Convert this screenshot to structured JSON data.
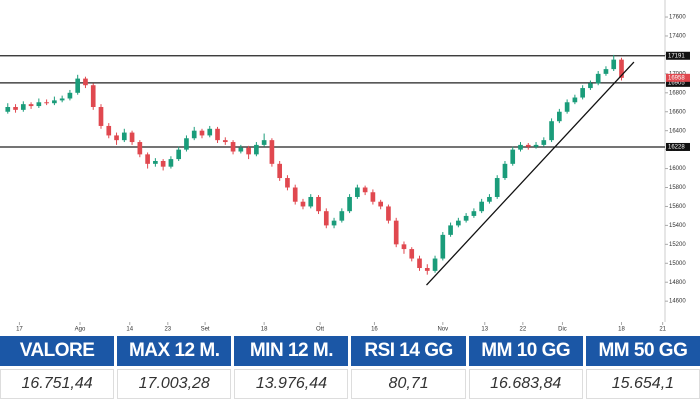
{
  "chart_data": {
    "type": "candlestick",
    "candles": [
      [
        16600,
        16690,
        16580,
        16650
      ],
      [
        16650,
        16680,
        16590,
        16620
      ],
      [
        16620,
        16710,
        16600,
        16680
      ],
      [
        16680,
        16700,
        16630,
        16660
      ],
      [
        16660,
        16740,
        16640,
        16700
      ],
      [
        16700,
        16730,
        16670,
        16690
      ],
      [
        16690,
        16760,
        16670,
        16720
      ],
      [
        16720,
        16770,
        16700,
        16740
      ],
      [
        16740,
        16830,
        16720,
        16800
      ],
      [
        16800,
        16990,
        16780,
        16950
      ],
      [
        16950,
        16970,
        16850,
        16880
      ],
      [
        16880,
        16900,
        16620,
        16650
      ],
      [
        16650,
        16680,
        16420,
        16450
      ],
      [
        16450,
        16480,
        16320,
        16350
      ],
      [
        16350,
        16380,
        16250,
        16300
      ],
      [
        16300,
        16420,
        16280,
        16380
      ],
      [
        16380,
        16400,
        16250,
        16280
      ],
      [
        16280,
        16300,
        16120,
        16150
      ],
      [
        16150,
        16170,
        16000,
        16050
      ],
      [
        16050,
        16110,
        16020,
        16080
      ],
      [
        16080,
        16100,
        15980,
        16020
      ],
      [
        16020,
        16130,
        16000,
        16100
      ],
      [
        16100,
        16230,
        16080,
        16200
      ],
      [
        16200,
        16350,
        16180,
        16320
      ],
      [
        16320,
        16440,
        16300,
        16400
      ],
      [
        16400,
        16420,
        16320,
        16350
      ],
      [
        16350,
        16450,
        16330,
        16420
      ],
      [
        16420,
        16440,
        16270,
        16300
      ],
      [
        16300,
        16330,
        16250,
        16280
      ],
      [
        16280,
        16300,
        16150,
        16180
      ],
      [
        16180,
        16250,
        16160,
        16220
      ],
      [
        16220,
        16240,
        16100,
        16150
      ],
      [
        16150,
        16280,
        16130,
        16250
      ],
      [
        16250,
        16370,
        16230,
        16300
      ],
      [
        16300,
        16320,
        16020,
        16050
      ],
      [
        16050,
        16080,
        15870,
        15900
      ],
      [
        15900,
        15930,
        15770,
        15800
      ],
      [
        15800,
        15830,
        15620,
        15650
      ],
      [
        15650,
        15680,
        15570,
        15600
      ],
      [
        15600,
        15730,
        15580,
        15700
      ],
      [
        15700,
        15720,
        15520,
        15550
      ],
      [
        15550,
        15580,
        15370,
        15400
      ],
      [
        15400,
        15480,
        15370,
        15450
      ],
      [
        15450,
        15580,
        15430,
        15550
      ],
      [
        15550,
        15730,
        15530,
        15700
      ],
      [
        15700,
        15830,
        15680,
        15800
      ],
      [
        15800,
        15820,
        15720,
        15750
      ],
      [
        15750,
        15780,
        15620,
        15650
      ],
      [
        15650,
        15670,
        15570,
        15600
      ],
      [
        15600,
        15620,
        15420,
        15450
      ],
      [
        15450,
        15480,
        15170,
        15200
      ],
      [
        15200,
        15230,
        15100,
        15150
      ],
      [
        15150,
        15170,
        15020,
        15050
      ],
      [
        15050,
        15080,
        14920,
        14950
      ],
      [
        14950,
        14990,
        14880,
        14920
      ],
      [
        14920,
        15080,
        14900,
        15050
      ],
      [
        15050,
        15330,
        15030,
        15300
      ],
      [
        15300,
        15430,
        15280,
        15400
      ],
      [
        15400,
        15480,
        15380,
        15450
      ],
      [
        15450,
        15530,
        15430,
        15500
      ],
      [
        15500,
        15580,
        15480,
        15550
      ],
      [
        15550,
        15680,
        15530,
        15650
      ],
      [
        15650,
        15730,
        15630,
        15700
      ],
      [
        15700,
        15930,
        15680,
        15900
      ],
      [
        15900,
        16080,
        15880,
        16050
      ],
      [
        16050,
        16230,
        16030,
        16200
      ],
      [
        16200,
        16280,
        16180,
        16250
      ],
      [
        16250,
        16270,
        16200,
        16230
      ],
      [
        16230,
        16280,
        16210,
        16250
      ],
      [
        16250,
        16330,
        16230,
        16300
      ],
      [
        16300,
        16530,
        16280,
        16500
      ],
      [
        16500,
        16630,
        16480,
        16600
      ],
      [
        16600,
        16730,
        16580,
        16700
      ],
      [
        16700,
        16780,
        16680,
        16750
      ],
      [
        16750,
        16880,
        16730,
        16850
      ],
      [
        16850,
        16930,
        16830,
        16900
      ],
      [
        16900,
        17030,
        16880,
        17000
      ],
      [
        17000,
        17080,
        16980,
        17050
      ],
      [
        17050,
        17200,
        17030,
        17150
      ],
      [
        17150,
        17170,
        16930,
        16958
      ]
    ],
    "up_color": "#1a9c7a",
    "down_color": "#e0484f",
    "xlim": [
      -1,
      84.6
    ],
    "ylim": [
      14380,
      17727
    ],
    "xticks": [
      {
        "value": 1.5,
        "label": "17"
      },
      {
        "value": 9.3,
        "label": "Ago"
      },
      {
        "value": 15.7,
        "label": "14"
      },
      {
        "value": 20.6,
        "label": "23"
      },
      {
        "value": 25.4,
        "label": "Set"
      },
      {
        "value": 33,
        "label": "18"
      },
      {
        "value": 40.2,
        "label": "Ott"
      },
      {
        "value": 47.2,
        "label": "16"
      },
      {
        "value": 56,
        "label": "Nov"
      },
      {
        "value": 61.4,
        "label": "13"
      },
      {
        "value": 66.3,
        "label": "22"
      },
      {
        "value": 71.4,
        "label": "Dic"
      },
      {
        "value": 79,
        "label": "18"
      },
      {
        "value": 84.3,
        "label": "21"
      }
    ],
    "yticks": [
      17600,
      17400,
      17200,
      17000,
      16800,
      16600,
      16400,
      16200,
      16000,
      15800,
      15600,
      15400,
      15200,
      15000,
      14800,
      14600
    ],
    "levels": [
      17191,
      16905,
      16228
    ],
    "last_price": 16958,
    "trendline": {
      "x": [
        53.9,
        80.6
      ],
      "y": [
        14770,
        17125
      ]
    }
  },
  "table": {
    "header": [
      "VALORE",
      "MAX 12 M.",
      "MIN 12 M.",
      "RSI 14 GG",
      "MM 10 GG",
      "MM 50 GG"
    ],
    "rows": [
      [
        "16.751,44",
        "17.003,28",
        "13.976,44",
        "80,71",
        "16.683,84",
        "15.654,1"
      ]
    ]
  }
}
